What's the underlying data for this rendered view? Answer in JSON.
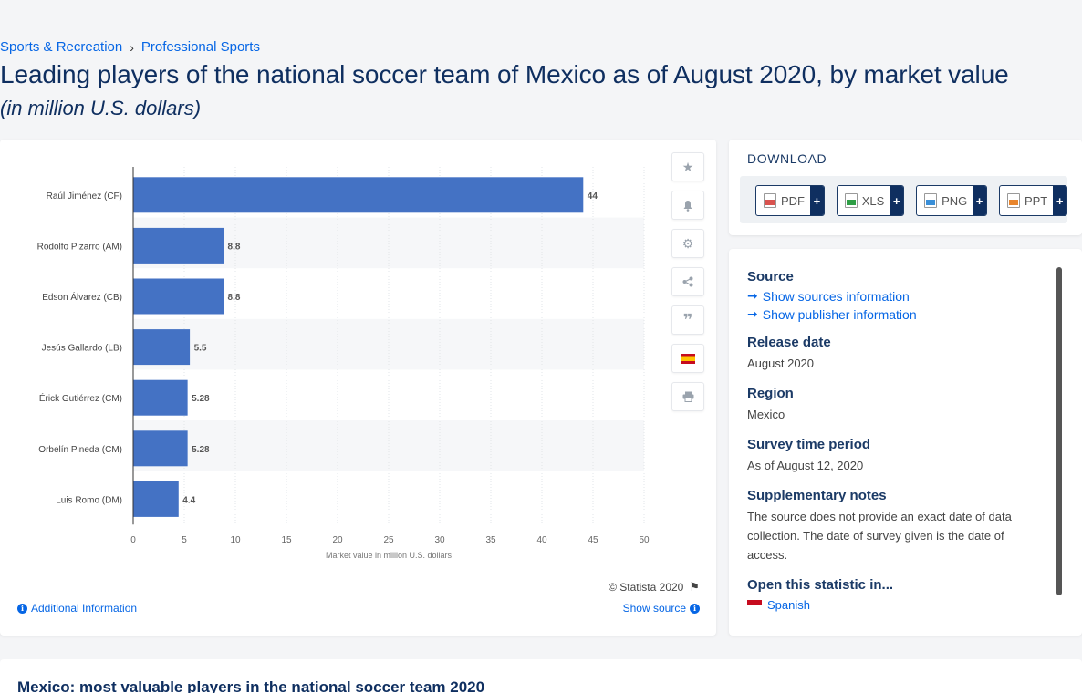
{
  "breadcrumb": {
    "items": [
      "Sports & Recreation",
      "Professional Sports"
    ],
    "sep": "›"
  },
  "title": "Leading players of the national soccer team of Mexico as of August 2020, by market value",
  "subtitle": "(in million U.S. dollars)",
  "chart_data": {
    "type": "bar",
    "orientation": "horizontal",
    "categories": [
      "Raúl Jiménez (CF)",
      "Rodolfo Pizarro (AM)",
      "Edson Álvarez (CB)",
      "Jesús Gallardo (LB)",
      "Érick Gutiérrez (CM)",
      "Orbelín Pineda (CM)",
      "Luis Romo (DM)"
    ],
    "values": [
      44,
      8.8,
      8.8,
      5.5,
      5.28,
      5.28,
      4.4
    ],
    "value_labels": [
      "44",
      "8.8",
      "8.8",
      "5.5",
      "5.28",
      "5.28",
      "4.4"
    ],
    "xlabel": "Market value in million U.S. dollars",
    "xlim": [
      0,
      50
    ],
    "xticks": [
      0,
      5,
      10,
      15,
      20,
      25,
      30,
      35,
      40,
      45,
      50
    ],
    "bar_color": "#4472c4",
    "grid": true
  },
  "chart_footer": {
    "copyright": "© Statista 2020",
    "additional_info": "Additional Information",
    "show_source": "Show source"
  },
  "tools": [
    "star-icon",
    "bell-icon",
    "gear-icon",
    "share-icon",
    "quote-icon",
    "spain-flag-icon",
    "print-icon"
  ],
  "download": {
    "heading": "DOWNLOAD",
    "buttons": [
      {
        "label": "PDF",
        "plus": "+",
        "color": "#d9534f"
      },
      {
        "label": "XLS",
        "plus": "+",
        "color": "#2e9e45"
      },
      {
        "label": "PNG",
        "plus": "+",
        "color": "#3a8fd8"
      },
      {
        "label": "PPT",
        "plus": "+",
        "color": "#e8852d"
      }
    ]
  },
  "source": {
    "heading": "Source",
    "show_sources": "Show sources information",
    "show_publisher": "Show publisher information",
    "release_date_label": "Release date",
    "release_date": "August 2020",
    "region_label": "Region",
    "region": "Mexico",
    "survey_label": "Survey time period",
    "survey": "As of August 12, 2020",
    "notes_label": "Supplementary notes",
    "notes": "The source does not provide an exact date of data collection. The date of survey given is the date of access.",
    "open_label": "Open this statistic in...",
    "open_lang": "Spanish"
  },
  "bottom": {
    "title": "Mexico: most valuable players in the national soccer team 2020"
  }
}
